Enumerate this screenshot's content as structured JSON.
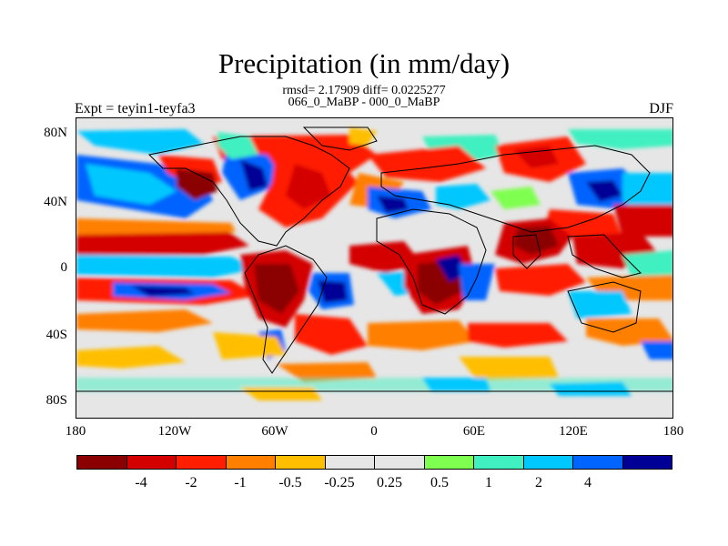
{
  "title": "Precipitation (in mm/day)",
  "stats": "rmsd= 2.17909 diff= 0.0225277",
  "subtitle": "066_0_MaBP - 000_0_MaBP",
  "left_label": "Expt = teyin1-teyfa3",
  "right_label": "DJF",
  "y_ticks": [
    "80N",
    "40N",
    "0",
    "40S",
    "80S"
  ],
  "x_ticks": [
    "180",
    "120W",
    "60W",
    "0",
    "60E",
    "120E",
    "180"
  ],
  "colorbar": {
    "colors": [
      "#8b0000",
      "#d40000",
      "#ff1e00",
      "#ff7f00",
      "#ffbf00",
      "#e6e6e6",
      "#e6e6e6",
      "#7fff50",
      "#40f0c0",
      "#00c8ff",
      "#0064ff",
      "#000096"
    ],
    "labels": [
      "-4",
      "-2",
      "-1",
      "-0.5",
      "-0.25",
      "0.25",
      "0.5",
      "1",
      "2",
      "4"
    ]
  }
}
